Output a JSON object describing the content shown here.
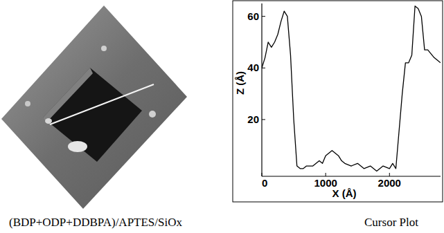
{
  "image_panel": {
    "caption": "(BDP+ODP+DDBPA)/APTES/SiOx"
  },
  "chart_data": {
    "type": "line",
    "title": "Cursor Plot",
    "x_label": "X (Å)",
    "y_label": "Z (Å)",
    "x": [
      0,
      50,
      100,
      150,
      200,
      250,
      300,
      350,
      400,
      450,
      500,
      550,
      600,
      650,
      700,
      800,
      900,
      950,
      1000,
      1100,
      1200,
      1250,
      1300,
      1400,
      1500,
      1600,
      1700,
      1800,
      1900,
      2000,
      2050,
      2100,
      2200,
      2250,
      2300,
      2350,
      2400,
      2450,
      2500,
      2550,
      2600,
      2700,
      2750,
      2800
    ],
    "values": [
      40,
      44,
      50,
      48,
      50,
      53,
      58,
      62,
      60,
      45,
      20,
      2,
      1,
      1,
      2,
      2,
      4,
      3,
      6,
      8,
      6,
      4,
      3,
      2,
      3,
      1,
      2,
      0,
      2,
      1,
      3,
      1,
      30,
      42,
      42,
      45,
      64,
      63,
      60,
      47,
      47,
      44,
      43,
      42
    ],
    "color": "#000000",
    "xlim": [
      0,
      2800
    ],
    "ylim": [
      -2,
      65
    ],
    "xticks": [
      0,
      1000,
      2000
    ],
    "yticks": [
      20,
      40,
      60
    ],
    "grid": false
  }
}
